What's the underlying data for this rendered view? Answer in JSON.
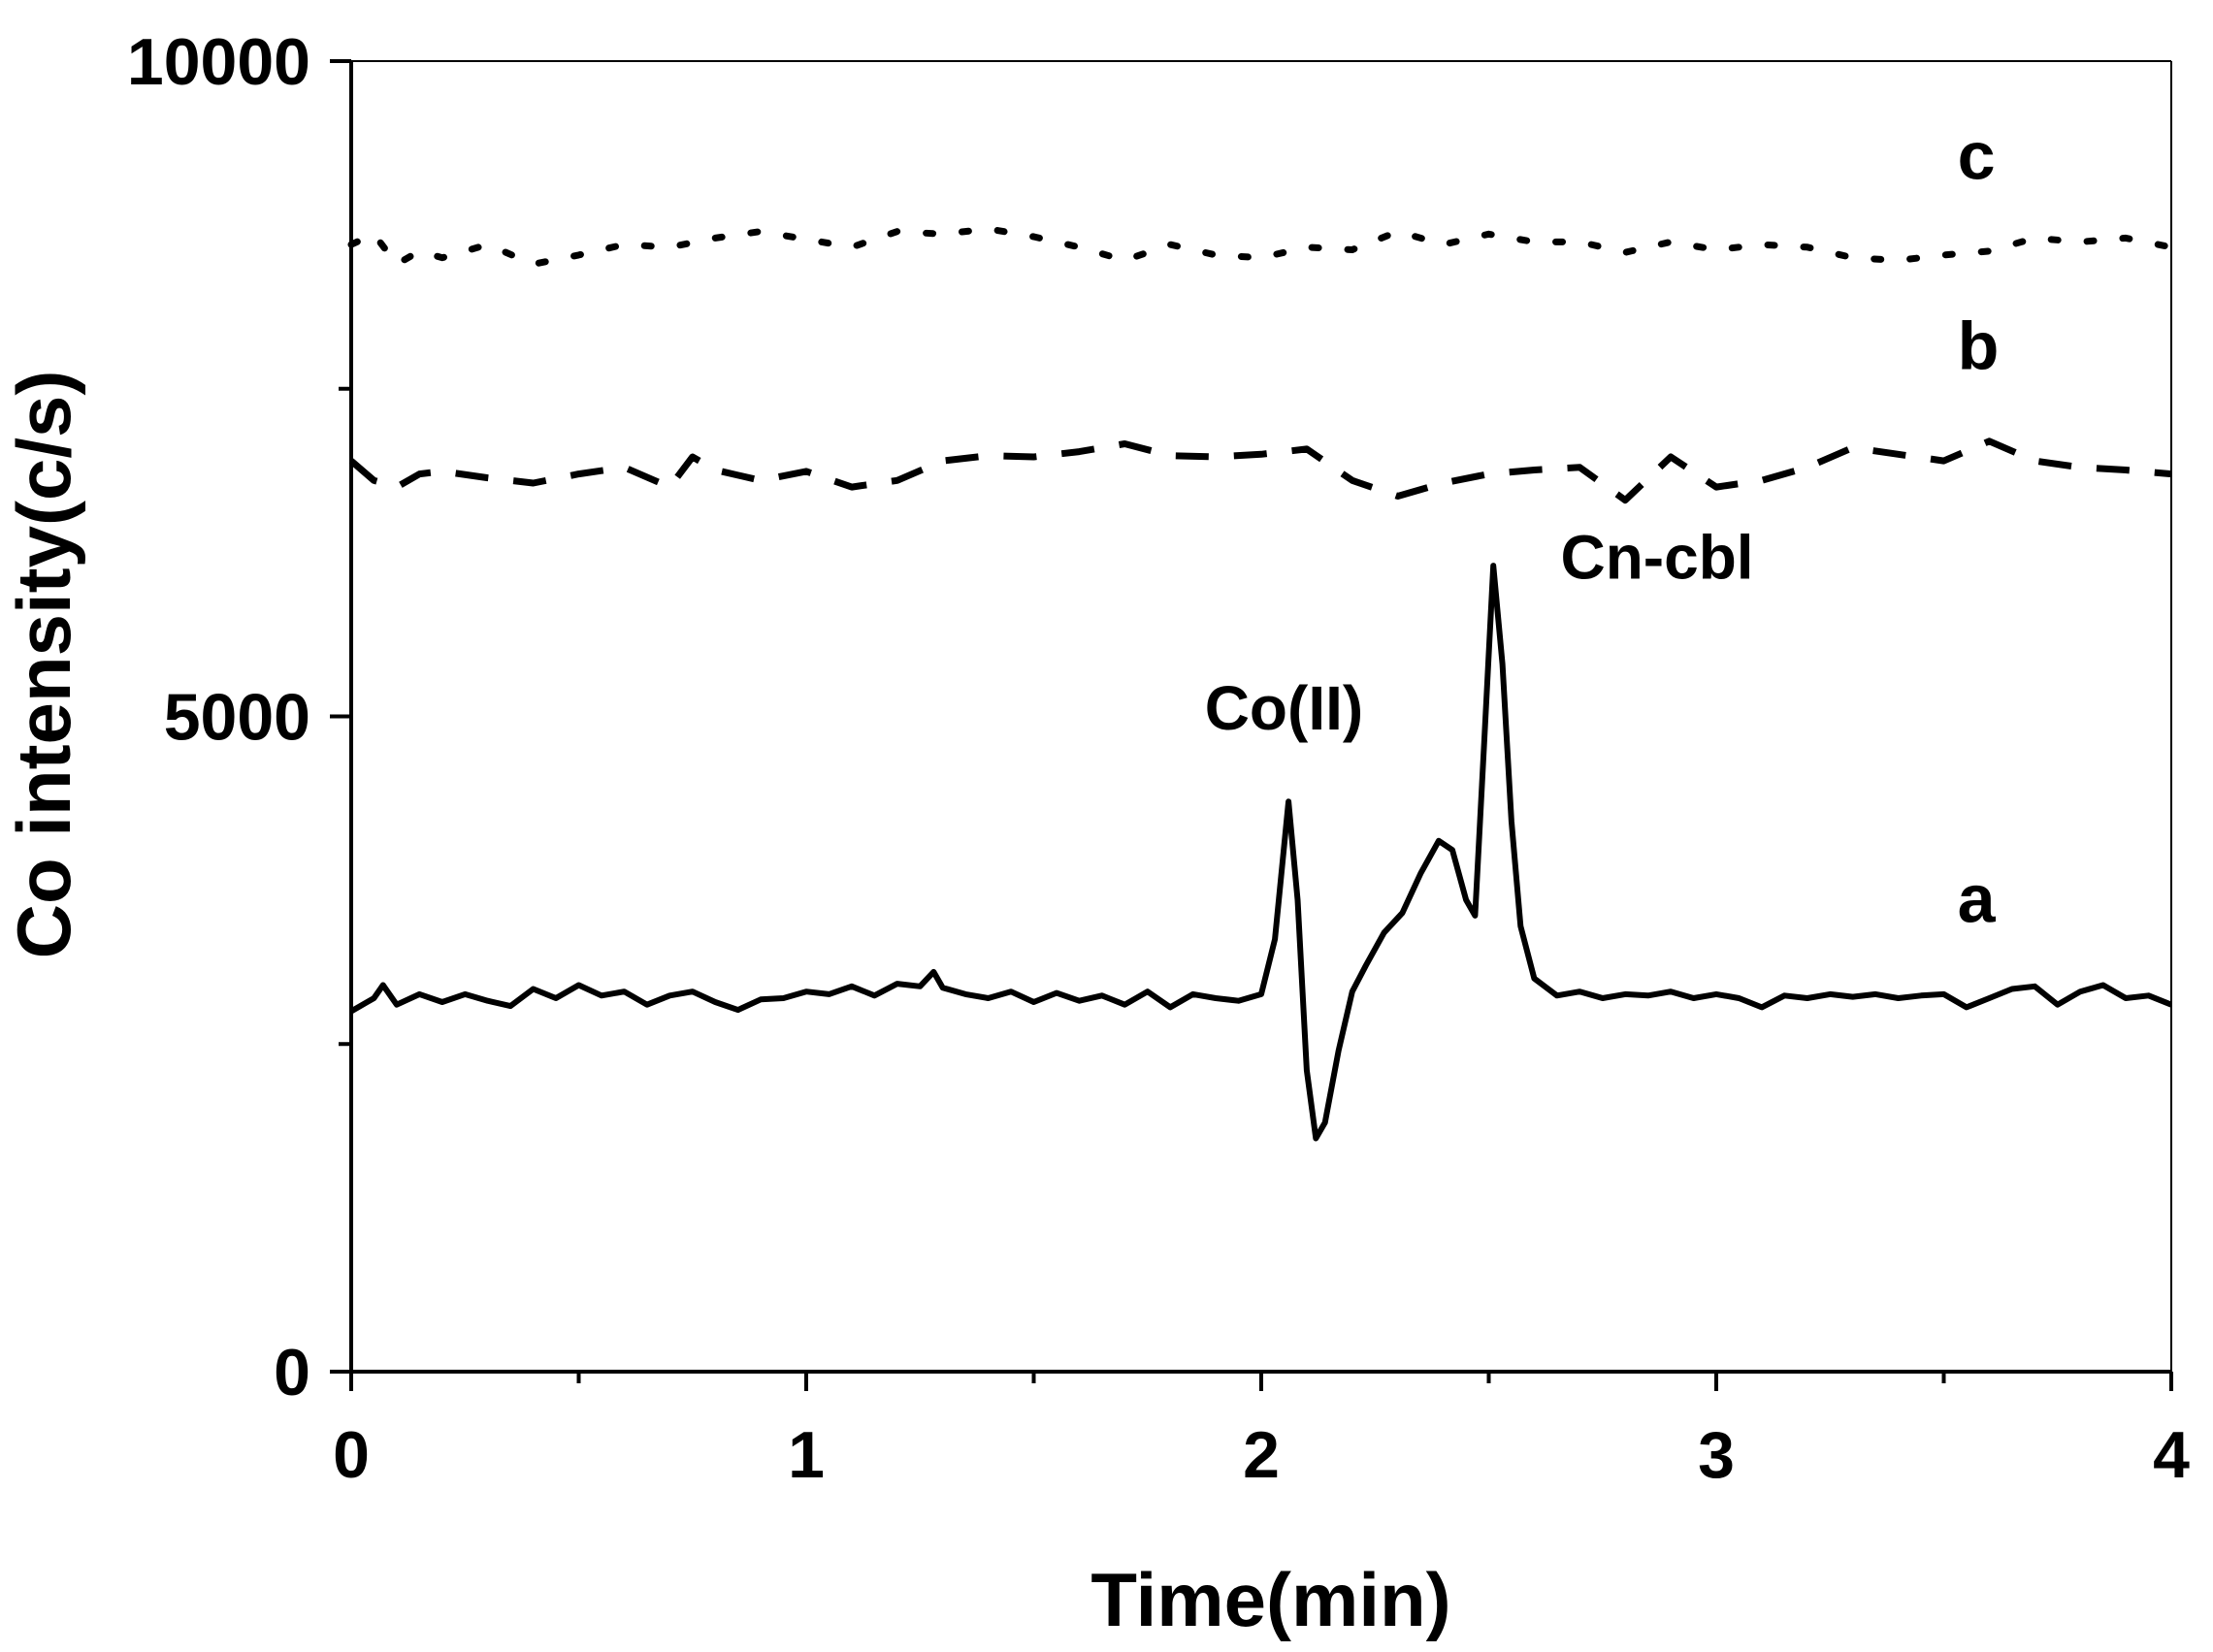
{
  "chart_data": {
    "type": "line",
    "xlabel": "Time(min)",
    "ylabel": "Co intensity(c/s)",
    "xlim": [
      0,
      4
    ],
    "ylim": [
      0,
      10000
    ],
    "x_ticks": [
      0,
      1,
      2,
      3,
      4
    ],
    "y_ticks": [
      0,
      5000,
      10000
    ],
    "x_tick_labels": [
      "0",
      "1",
      "2",
      "3",
      "4"
    ],
    "y_tick_labels": [
      "0",
      "5000",
      "10000"
    ],
    "grid": false,
    "series": [
      {
        "name": "a",
        "style": "solid",
        "points": [
          [
            0.0,
            2750
          ],
          [
            0.05,
            2850
          ],
          [
            0.07,
            2950
          ],
          [
            0.1,
            2800
          ],
          [
            0.15,
            2880
          ],
          [
            0.2,
            2820
          ],
          [
            0.25,
            2880
          ],
          [
            0.3,
            2830
          ],
          [
            0.35,
            2790
          ],
          [
            0.4,
            2920
          ],
          [
            0.45,
            2850
          ],
          [
            0.5,
            2950
          ],
          [
            0.55,
            2870
          ],
          [
            0.6,
            2900
          ],
          [
            0.65,
            2800
          ],
          [
            0.7,
            2870
          ],
          [
            0.75,
            2900
          ],
          [
            0.8,
            2820
          ],
          [
            0.85,
            2760
          ],
          [
            0.9,
            2840
          ],
          [
            0.95,
            2850
          ],
          [
            1.0,
            2900
          ],
          [
            1.05,
            2880
          ],
          [
            1.1,
            2940
          ],
          [
            1.15,
            2870
          ],
          [
            1.2,
            2960
          ],
          [
            1.25,
            2940
          ],
          [
            1.28,
            3050
          ],
          [
            1.3,
            2930
          ],
          [
            1.35,
            2880
          ],
          [
            1.4,
            2850
          ],
          [
            1.45,
            2900
          ],
          [
            1.5,
            2820
          ],
          [
            1.55,
            2890
          ],
          [
            1.6,
            2830
          ],
          [
            1.65,
            2870
          ],
          [
            1.7,
            2800
          ],
          [
            1.75,
            2900
          ],
          [
            1.8,
            2780
          ],
          [
            1.85,
            2880
          ],
          [
            1.9,
            2850
          ],
          [
            1.95,
            2830
          ],
          [
            2.0,
            2880
          ],
          [
            2.03,
            3300
          ],
          [
            2.06,
            4350
          ],
          [
            2.08,
            3600
          ],
          [
            2.1,
            2300
          ],
          [
            2.12,
            1780
          ],
          [
            2.14,
            1900
          ],
          [
            2.17,
            2450
          ],
          [
            2.2,
            2900
          ],
          [
            2.23,
            3100
          ],
          [
            2.27,
            3350
          ],
          [
            2.31,
            3500
          ],
          [
            2.35,
            3800
          ],
          [
            2.39,
            4050
          ],
          [
            2.42,
            3980
          ],
          [
            2.45,
            3600
          ],
          [
            2.47,
            3480
          ],
          [
            2.49,
            4800
          ],
          [
            2.51,
            6150
          ],
          [
            2.53,
            5400
          ],
          [
            2.55,
            4200
          ],
          [
            2.57,
            3400
          ],
          [
            2.6,
            3000
          ],
          [
            2.65,
            2870
          ],
          [
            2.7,
            2900
          ],
          [
            2.75,
            2850
          ],
          [
            2.8,
            2880
          ],
          [
            2.85,
            2870
          ],
          [
            2.9,
            2900
          ],
          [
            2.95,
            2850
          ],
          [
            3.0,
            2880
          ],
          [
            3.05,
            2850
          ],
          [
            3.1,
            2780
          ],
          [
            3.15,
            2870
          ],
          [
            3.2,
            2850
          ],
          [
            3.25,
            2880
          ],
          [
            3.3,
            2860
          ],
          [
            3.35,
            2880
          ],
          [
            3.4,
            2850
          ],
          [
            3.45,
            2870
          ],
          [
            3.5,
            2880
          ],
          [
            3.55,
            2780
          ],
          [
            3.6,
            2850
          ],
          [
            3.65,
            2920
          ],
          [
            3.7,
            2940
          ],
          [
            3.75,
            2800
          ],
          [
            3.8,
            2900
          ],
          [
            3.85,
            2950
          ],
          [
            3.9,
            2850
          ],
          [
            3.95,
            2870
          ],
          [
            4.0,
            2800
          ]
        ]
      },
      {
        "name": "b",
        "style": "dashed",
        "points": [
          [
            0.0,
            6950
          ],
          [
            0.05,
            6800
          ],
          [
            0.1,
            6750
          ],
          [
            0.15,
            6850
          ],
          [
            0.2,
            6870
          ],
          [
            0.3,
            6820
          ],
          [
            0.4,
            6780
          ],
          [
            0.5,
            6850
          ],
          [
            0.6,
            6900
          ],
          [
            0.7,
            6750
          ],
          [
            0.75,
            6980
          ],
          [
            0.8,
            6880
          ],
          [
            0.9,
            6800
          ],
          [
            1.0,
            6870
          ],
          [
            1.1,
            6750
          ],
          [
            1.2,
            6800
          ],
          [
            1.3,
            6950
          ],
          [
            1.4,
            6990
          ],
          [
            1.5,
            6980
          ],
          [
            1.6,
            7020
          ],
          [
            1.7,
            7080
          ],
          [
            1.8,
            6990
          ],
          [
            1.9,
            6980
          ],
          [
            2.0,
            7000
          ],
          [
            2.1,
            7040
          ],
          [
            2.2,
            6800
          ],
          [
            2.3,
            6680
          ],
          [
            2.4,
            6780
          ],
          [
            2.5,
            6850
          ],
          [
            2.6,
            6880
          ],
          [
            2.7,
            6900
          ],
          [
            2.8,
            6650
          ],
          [
            2.9,
            6980
          ],
          [
            3.0,
            6750
          ],
          [
            3.1,
            6800
          ],
          [
            3.2,
            6900
          ],
          [
            3.3,
            7050
          ],
          [
            3.4,
            7000
          ],
          [
            3.5,
            6950
          ],
          [
            3.6,
            7100
          ],
          [
            3.7,
            6950
          ],
          [
            3.8,
            6900
          ],
          [
            3.9,
            6880
          ],
          [
            4.0,
            6850
          ]
        ]
      },
      {
        "name": "c",
        "style": "dotted",
        "points": [
          [
            0.0,
            8600
          ],
          [
            0.05,
            8680
          ],
          [
            0.1,
            8450
          ],
          [
            0.15,
            8550
          ],
          [
            0.2,
            8500
          ],
          [
            0.3,
            8600
          ],
          [
            0.4,
            8450
          ],
          [
            0.5,
            8520
          ],
          [
            0.6,
            8600
          ],
          [
            0.7,
            8580
          ],
          [
            0.8,
            8650
          ],
          [
            0.9,
            8700
          ],
          [
            1.0,
            8640
          ],
          [
            1.1,
            8580
          ],
          [
            1.2,
            8700
          ],
          [
            1.3,
            8680
          ],
          [
            1.4,
            8720
          ],
          [
            1.5,
            8660
          ],
          [
            1.6,
            8580
          ],
          [
            1.7,
            8480
          ],
          [
            1.8,
            8600
          ],
          [
            1.9,
            8520
          ],
          [
            2.0,
            8500
          ],
          [
            2.1,
            8580
          ],
          [
            2.2,
            8560
          ],
          [
            2.3,
            8700
          ],
          [
            2.4,
            8600
          ],
          [
            2.5,
            8680
          ],
          [
            2.6,
            8620
          ],
          [
            2.7,
            8620
          ],
          [
            2.8,
            8540
          ],
          [
            2.9,
            8620
          ],
          [
            3.0,
            8560
          ],
          [
            3.1,
            8600
          ],
          [
            3.2,
            8580
          ],
          [
            3.3,
            8500
          ],
          [
            3.4,
            8480
          ],
          [
            3.5,
            8520
          ],
          [
            3.6,
            8550
          ],
          [
            3.7,
            8650
          ],
          [
            3.8,
            8620
          ],
          [
            3.9,
            8650
          ],
          [
            4.0,
            8580
          ]
        ]
      }
    ],
    "annotations": [
      {
        "text": "Co(II)",
        "x": 2.05,
        "y": 4900
      },
      {
        "text": "Cn-cbl",
        "x": 2.87,
        "y": 6050
      },
      {
        "text": "c",
        "x": 3.53,
        "y": 9100
      },
      {
        "text": "b",
        "x": 3.53,
        "y": 7650
      },
      {
        "text": "a",
        "x": 3.53,
        "y": 3430
      }
    ]
  }
}
